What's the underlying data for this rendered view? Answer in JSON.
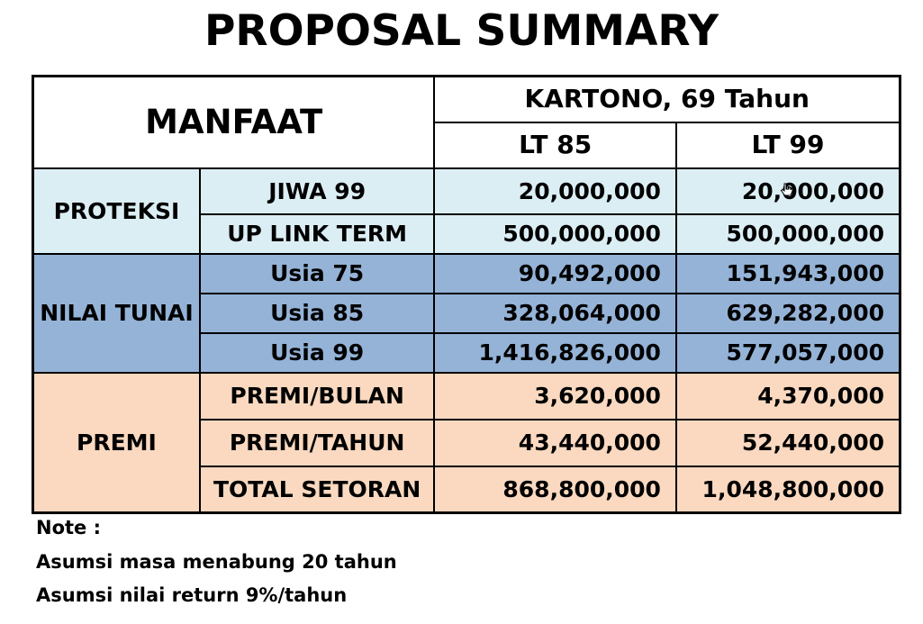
{
  "title": "PROPOSAL SUMMARY",
  "table": {
    "header": {
      "manfaat": "MANFAAT",
      "client": "KARTONO, 69 Tahun",
      "plans": [
        "LT 85",
        "LT 99"
      ]
    },
    "groups": [
      {
        "name": "PROTEKSI",
        "color": "#dbeef4",
        "rows": [
          {
            "label": "JIWA 99",
            "lt85": "20,000,000",
            "lt99": "20,000,000"
          },
          {
            "label": "UP LINK TERM",
            "lt85": "500,000,000",
            "lt99": "500,000,000"
          }
        ]
      },
      {
        "name": "NILAI TUNAI",
        "color": "#95b3d7",
        "rows": [
          {
            "label": "Usia 75",
            "lt85": "90,492,000",
            "lt99": "151,943,000"
          },
          {
            "label": "Usia 85",
            "lt85": "328,064,000",
            "lt99": "629,282,000"
          },
          {
            "label": "Usia 99",
            "lt85": "1,416,826,000",
            "lt99": "577,057,000"
          }
        ]
      },
      {
        "name": "PREMI",
        "color": "#fad9c0",
        "rows": [
          {
            "label": "PREMI/BULAN",
            "lt85": "3,620,000",
            "lt99": "4,370,000"
          },
          {
            "label": "PREMI/TAHUN",
            "lt85": "43,440,000",
            "lt99": "52,440,000"
          },
          {
            "label": "TOTAL SETORAN",
            "lt85": "868,800,000",
            "lt99": "1,048,800,000"
          }
        ]
      }
    ]
  },
  "notes": {
    "heading": "Note :",
    "lines": [
      "Asumsi masa menabung 20 tahun",
      "Asumsi nilai return 9%/tahun"
    ]
  },
  "icons": {
    "cursor": "hand-pointer-icon"
  }
}
